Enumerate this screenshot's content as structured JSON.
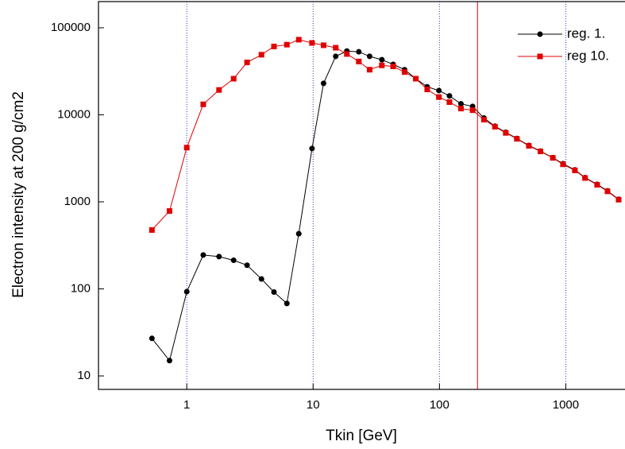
{
  "chart_data": {
    "type": "line",
    "xlabel": "Tkin [GeV]",
    "ylabel": "Electron intensity at 200 g/cm2",
    "xscale": "log",
    "yscale": "log",
    "xlim": [
      0.2,
      2900
    ],
    "ylim": [
      7,
      200000
    ],
    "xticks": [
      1,
      10,
      100,
      1000
    ],
    "yticks": [
      10,
      100,
      1000,
      10000,
      100000
    ],
    "xgrid": true,
    "grid_color": "#3333cc",
    "vline": {
      "x": 200,
      "color": "#e00000"
    },
    "legend": "upper right",
    "x": [
      0.53,
      0.73,
      1,
      1.35,
      1.8,
      2.35,
      3.0,
      3.9,
      4.9,
      6.2,
      7.7,
      9.8,
      12.1,
      15.1,
      18.5,
      23,
      28,
      35,
      43,
      53,
      65,
      80,
      99,
      120,
      148,
      183,
      225,
      275,
      335,
      410,
      510,
      630,
      790,
      950,
      1180,
      1420,
      1770,
      2140,
      2620
    ],
    "series": [
      {
        "name": "reg. 1.",
        "color": "#000000",
        "marker": "circle",
        "values": [
          27,
          15,
          93,
          245,
          235,
          213,
          187,
          130,
          92,
          68,
          430,
          4100,
          23000,
          47000,
          54000,
          53000,
          47000,
          43000,
          38000,
          33000,
          26000,
          21000,
          19000,
          16500,
          13400,
          12500,
          9200,
          7400,
          6300,
          5350,
          4450,
          3830,
          3220,
          2740,
          2330,
          1900,
          1590,
          1340,
          1070
        ]
      },
      {
        "name": "reg 10.",
        "color": "#e00000",
        "marker": "square",
        "values": [
          475,
          785,
          4200,
          13200,
          19300,
          26000,
          40000,
          49000,
          61000,
          64000,
          73000,
          67000,
          63000,
          59000,
          50000,
          41000,
          33000,
          37000,
          36000,
          31000,
          26000,
          19600,
          16000,
          14000,
          11800,
          11300,
          8800,
          7300,
          6200,
          5300,
          4400,
          3800,
          3200,
          2700,
          2300,
          1880,
          1570,
          1320,
          1060
        ]
      }
    ]
  }
}
